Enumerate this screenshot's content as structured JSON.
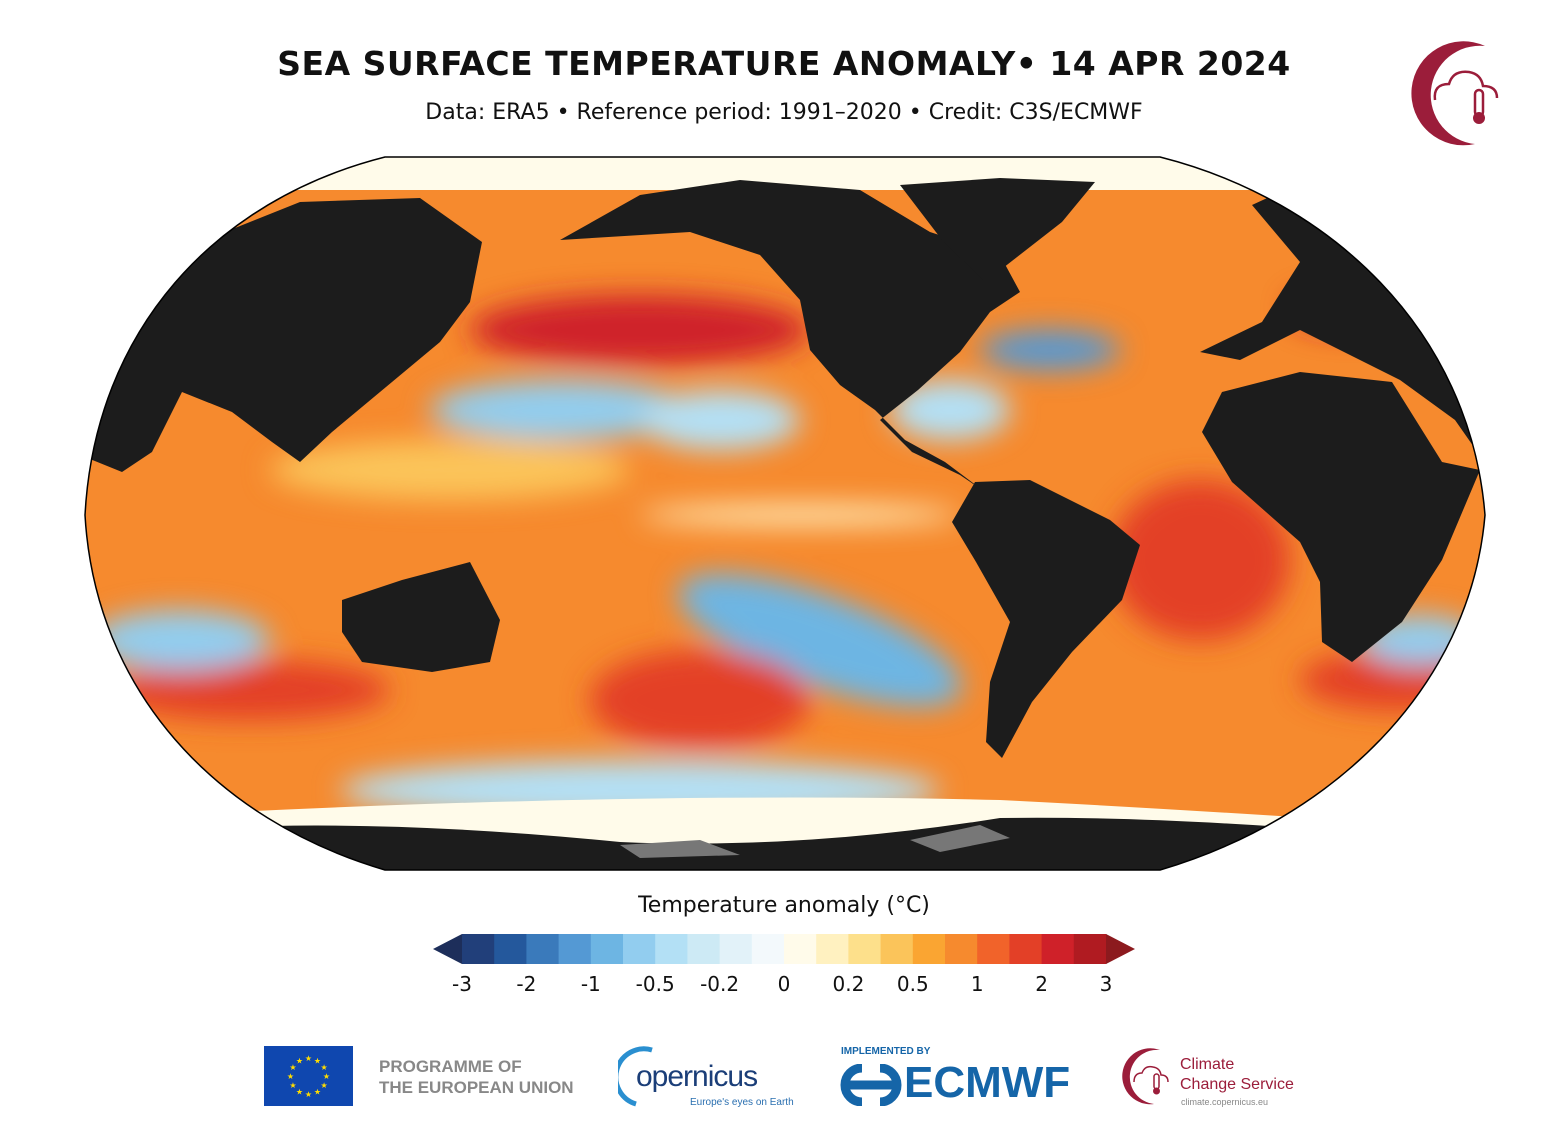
{
  "header": {
    "title": "SEA SURFACE TEMPERATURE ANOMALY• 14 APR 2024",
    "subtitle": "Data: ERA5 • Reference period: 1991–2020 • Credit: C3S/ECMWF"
  },
  "map": {
    "projection": "Robinson",
    "land_color": "#1c1c1c",
    "sea_ice_color": "#fffbea"
  },
  "colorbar": {
    "label": "Temperature anomaly (°C)",
    "ticks": [
      "-3",
      "-2",
      "-1",
      "-0.5",
      "-0.2",
      "0",
      "0.2",
      "0.5",
      "1",
      "2",
      "3"
    ],
    "colors": [
      "#213f7a",
      "#24589c",
      "#3a7abb",
      "#5499d4",
      "#6db5e3",
      "#92cdef",
      "#b3e0f5",
      "#cdeaf5",
      "#e2f2f9",
      "#f3f9fc",
      "#fffbea",
      "#fff1c0",
      "#fde08b",
      "#fbc45a",
      "#faa532",
      "#f68a2e",
      "#f1632a",
      "#e34027",
      "#cf2129",
      "#b01b21"
    ],
    "under_color": "#1d2e5a",
    "over_color": "#8c1a1e",
    "extend": "both"
  },
  "footer": {
    "eu": {
      "line1": "PROGRAMME OF",
      "line2": "THE EUROPEAN UNION"
    },
    "copernicus": {
      "name": "opernicus",
      "tagline": "Europe's eyes on Earth"
    },
    "ecmwf": {
      "implemented_by": "IMPLEMENTED BY",
      "name": "ECMWF"
    },
    "c3s": {
      "line1": "Climate",
      "line2": "Change Service",
      "url": "climate.copernicus.eu"
    }
  }
}
